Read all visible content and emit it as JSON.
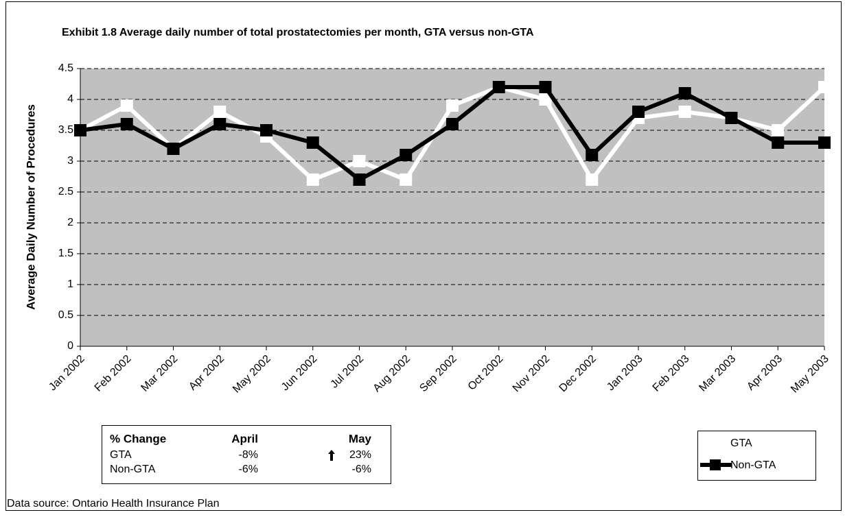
{
  "chart_data": {
    "type": "line",
    "title": "Exhibit 1.8 Average daily number of total prostatectomies per month, GTA versus non-GTA",
    "ylabel": "Average Daily Number of Procedures",
    "categories": [
      "Jan 2002",
      "Feb 2002",
      "Mar 2002",
      "Apr 2002",
      "May 2002",
      "Jun 2002",
      "Jul 2002",
      "Aug 2002",
      "Sep 2002",
      "Oct 2002",
      "Nov 2002",
      "Dec 2002",
      "Jan 2003",
      "Feb 2003",
      "Mar 2003",
      "Apr 2003",
      "May 2003"
    ],
    "series": [
      {
        "name": "GTA",
        "color": "#ffffff",
        "values": [
          3.5,
          3.9,
          3.2,
          3.8,
          3.4,
          2.7,
          3.0,
          2.7,
          3.9,
          4.2,
          4.0,
          2.7,
          3.7,
          3.8,
          3.7,
          3.5,
          4.2
        ]
      },
      {
        "name": "Non-GTA",
        "color": "#000000",
        "values": [
          3.5,
          3.6,
          3.2,
          3.6,
          3.5,
          3.3,
          2.7,
          3.1,
          3.6,
          4.2,
          4.2,
          3.1,
          3.8,
          4.1,
          3.7,
          3.3,
          3.3
        ]
      }
    ],
    "ylim": [
      0,
      4.5
    ],
    "yticks": [
      0,
      0.5,
      1,
      1.5,
      2,
      2.5,
      3,
      3.5,
      4,
      4.5
    ],
    "grid": true,
    "plot_background": "#c0c0c0",
    "legend": "lower right"
  },
  "table": {
    "header": [
      "% Change",
      "April",
      "May"
    ],
    "rows": [
      [
        "GTA",
        "-8%",
        "23%"
      ],
      [
        "Non-GTA",
        "-6%",
        "-6%"
      ]
    ]
  },
  "source": "Data source: Ontario Health Insurance Plan"
}
